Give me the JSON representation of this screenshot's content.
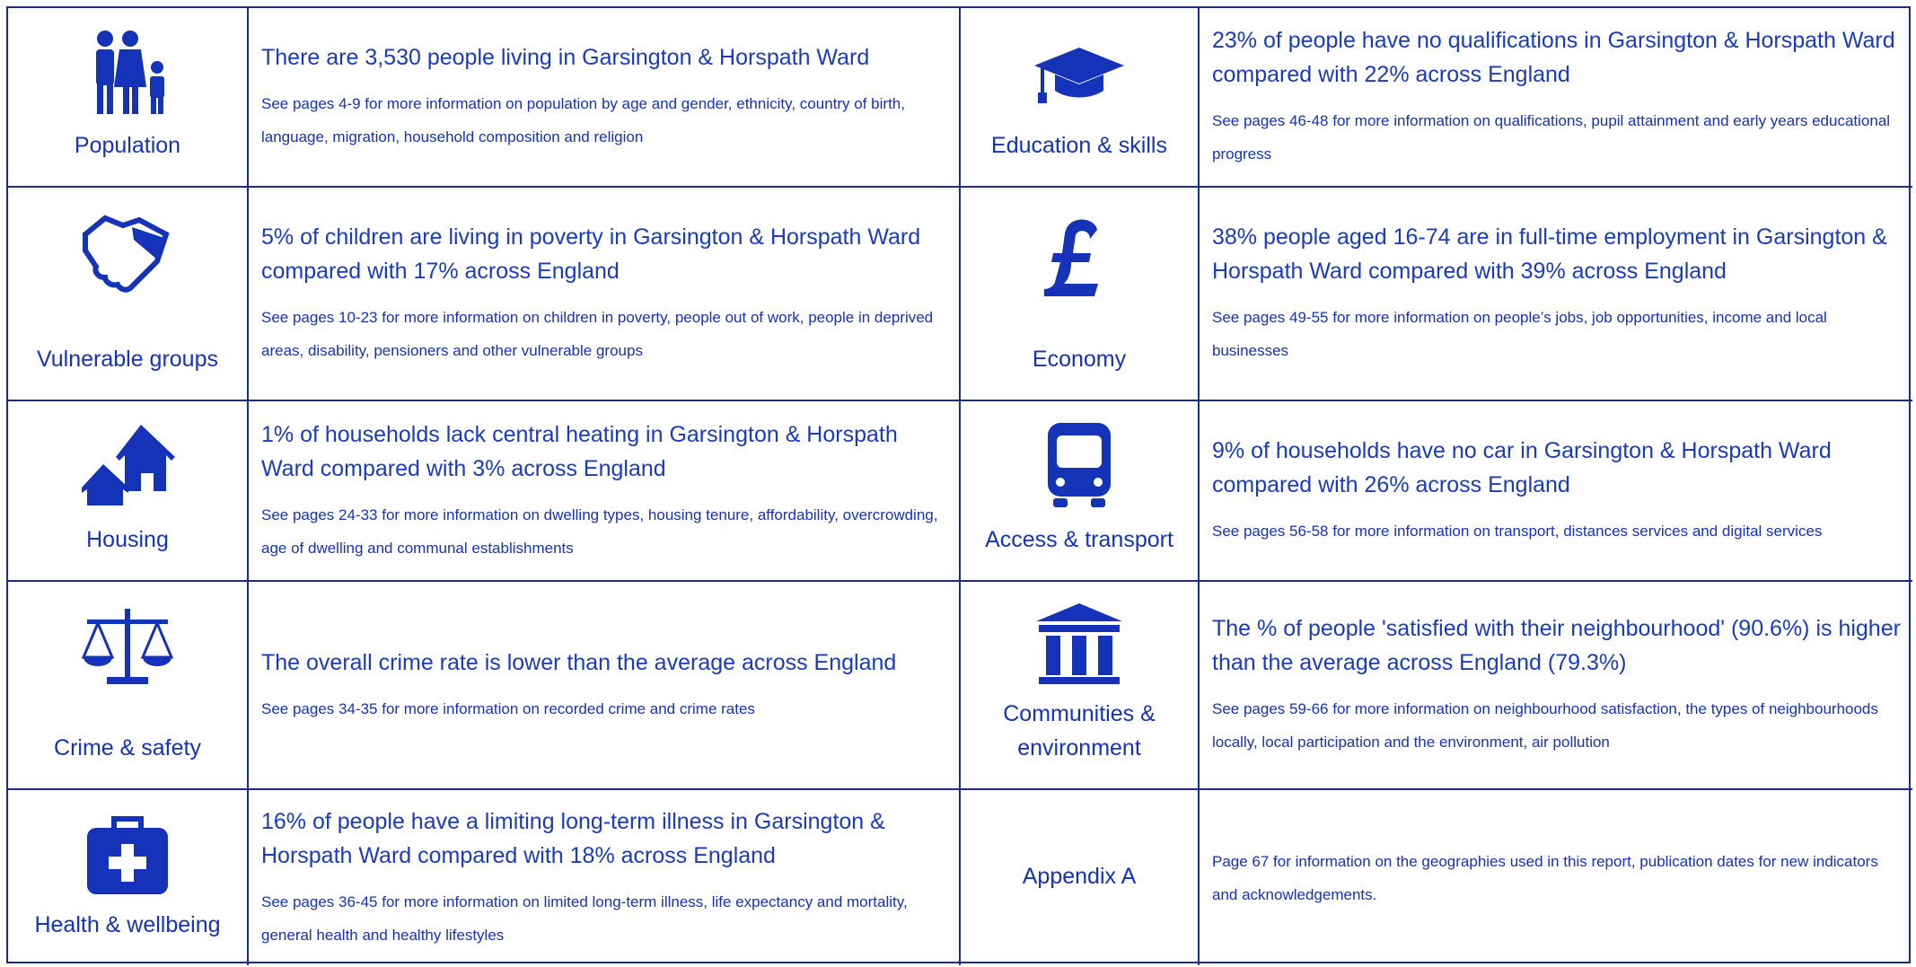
{
  "sections": [
    {
      "label": "Population",
      "headline": "There are 3,530 people living in Garsington & Horspath Ward",
      "detail": "See pages 4-9 for more information on population by age and gender, ethnicity, country of birth, language, migration, household composition and religion"
    },
    {
      "label": "Education & skills",
      "headline": "23% of people have no qualifications in Garsington & Horspath Ward compared with 22% across England",
      "detail": "See pages 46-48 for more information on qualifications, pupil attainment and early years educational progress"
    },
    {
      "label": "Vulnerable groups",
      "headline": "5% of children are living in poverty in Garsington & Horspath Ward compared with 17% across England",
      "detail": "See pages 10-23 for more information on children in poverty, people out of work, people in deprived areas, disability, pensioners and other vulnerable groups"
    },
    {
      "label": "Economy",
      "headline": "38% people aged 16-74 are in full-time employment in Garsington & Horspath Ward compared with 39% across England",
      "detail": "See pages 49-55 for more information on people’s jobs, job opportunities, income and local businesses"
    },
    {
      "label": "Housing",
      "headline": "1% of households lack central heating in Garsington & Horspath Ward compared with 3% across England",
      "detail": "See pages 24-33 for more information on dwelling types, housing tenure, affordability, overcrowding, age of dwelling and communal establishments"
    },
    {
      "label": "Access & transport",
      "headline": "9% of households have no car in Garsington & Horspath Ward compared with 26% across England",
      "detail": "See pages 56-58 for more information on transport, distances services and digital services"
    },
    {
      "label": "Crime & safety",
      "headline": "The overall crime rate is lower than the average across England",
      "detail": "See pages 34-35 for more information on recorded crime and crime rates"
    },
    {
      "label": "Communities & environment",
      "headline": "The % of people 'satisfied with their neighbourhood' (90.6%) is higher than the average across England (79.3%)",
      "detail": "See pages 59-66 for more information on neighbourhood satisfaction, the types of neighbourhoods locally, local participation and the environment, air pollution"
    },
    {
      "label": "Health & wellbeing",
      "headline": "16% of people have a limiting long-term illness in Garsington & Horspath Ward compared with 18% across England",
      "detail": "See pages 36-45 for more information on limited long-term illness, life expectancy and mortality, general health and healthy lifestyles"
    },
    {
      "label": "Appendix A",
      "detail": "Page 67 for information on the geographies used in this report, publication dates for new indicators and acknowledgements."
    }
  ]
}
